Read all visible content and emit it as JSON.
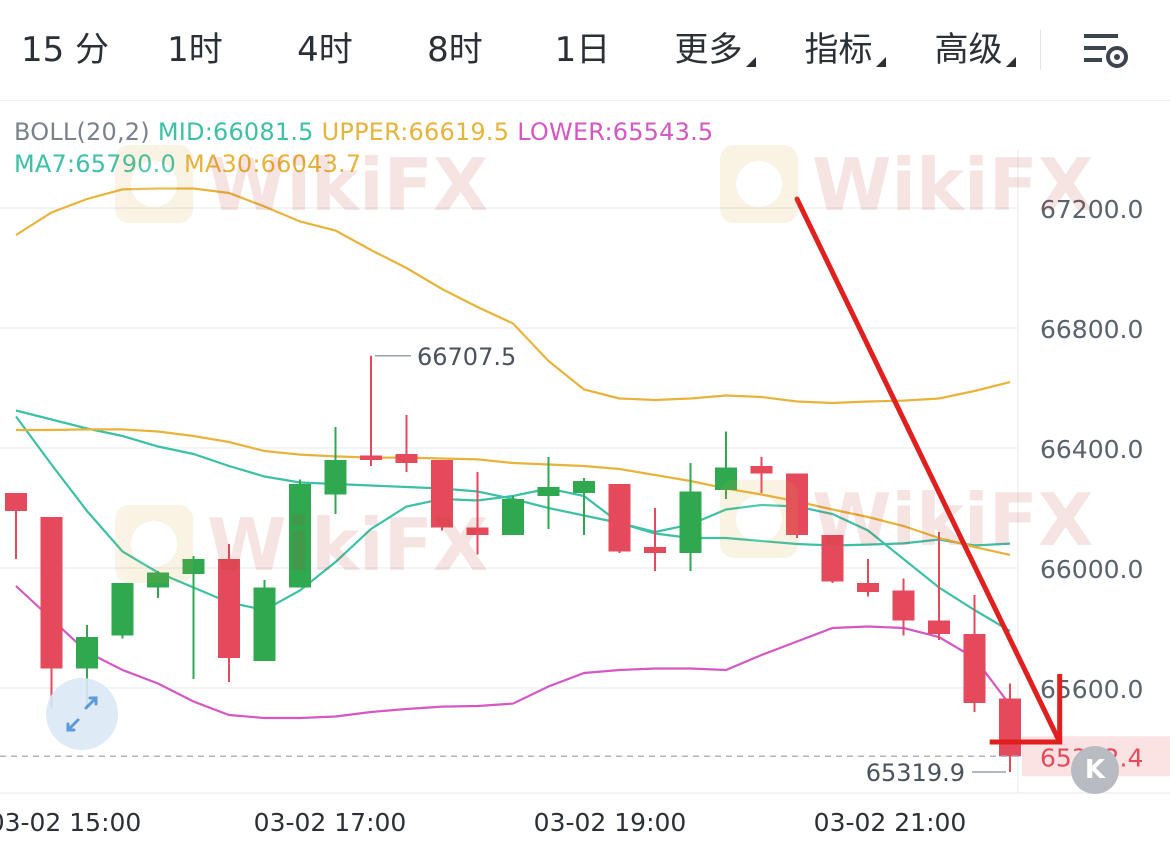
{
  "toolbar": {
    "tabs": [
      {
        "label": "15 分",
        "active": true
      },
      {
        "label": "1时",
        "active": false
      },
      {
        "label": "4时",
        "active": false
      },
      {
        "label": "8时",
        "active": false
      },
      {
        "label": "1日",
        "active": false
      },
      {
        "label": "更多",
        "active": false,
        "dropdown": true
      },
      {
        "label": "指标",
        "active": false,
        "dropdown": true
      },
      {
        "label": "高级",
        "active": false,
        "dropdown": true
      }
    ],
    "settings_icon": "chart-settings-icon"
  },
  "legend": {
    "boll_label": "BOLL(20,2)",
    "mid": "MID:66081.5",
    "upper": "UPPER:66619.5",
    "lower": "LOWER:65543.5",
    "ma7": "MA7:65790.0",
    "ma30": "MA30:66043.7"
  },
  "watermark_text": "WikiFX",
  "badge_label": "K",
  "colors": {
    "up": "#2fa84f",
    "down": "#e54a5c",
    "mid": "#3cc0a6",
    "upper": "#e9b33b",
    "lower": "#d457c3",
    "ma7": "#3cc0a6",
    "ma30": "#e9b33b",
    "arrow": "#e0201e",
    "accent": "#3a86d6"
  },
  "chart_data": {
    "type": "candlestick",
    "x_ticks": [
      "03-02 15:00",
      "03-02 17:00",
      "03-02 19:00",
      "03-02 21:00"
    ],
    "y_ticks": [
      67200.0,
      66800.0,
      66400.0,
      66000.0,
      65600.0
    ],
    "ylim": [
      65250,
      67350
    ],
    "current_price": "65372.4",
    "high_annotation": "66707.5",
    "low_annotation": "65319.9",
    "candles": [
      {
        "o": 66250,
        "h": 66250,
        "l": 66030,
        "c": 66190
      },
      {
        "o": 66170,
        "h": 66170,
        "l": 65535,
        "c": 65665
      },
      {
        "o": 65665,
        "h": 65810,
        "l": 65540,
        "c": 65770
      },
      {
        "o": 65775,
        "h": 65950,
        "l": 65765,
        "c": 65950
      },
      {
        "o": 65935,
        "h": 65990,
        "l": 65900,
        "c": 65985
      },
      {
        "o": 65980,
        "h": 66040,
        "l": 65630,
        "c": 66030
      },
      {
        "o": 66030,
        "h": 66080,
        "l": 65620,
        "c": 65700
      },
      {
        "o": 65690,
        "h": 65960,
        "l": 65690,
        "c": 65935
      },
      {
        "o": 65935,
        "h": 66295,
        "l": 65935,
        "c": 66280
      },
      {
        "o": 66245,
        "h": 66470,
        "l": 66180,
        "c": 66360
      },
      {
        "o": 66375,
        "h": 66707.5,
        "l": 66340,
        "c": 66360
      },
      {
        "o": 66380,
        "h": 66510,
        "l": 66320,
        "c": 66350
      },
      {
        "o": 66360,
        "h": 66360,
        "l": 66125,
        "c": 66135
      },
      {
        "o": 66135,
        "h": 66320,
        "l": 66045,
        "c": 66110
      },
      {
        "o": 66110,
        "h": 66240,
        "l": 66110,
        "c": 66230
      },
      {
        "o": 66240,
        "h": 66370,
        "l": 66130,
        "c": 66270
      },
      {
        "o": 66250,
        "h": 66300,
        "l": 66110,
        "c": 66290
      },
      {
        "o": 66280,
        "h": 66280,
        "l": 66050,
        "c": 66055
      },
      {
        "o": 66070,
        "h": 66200,
        "l": 65990,
        "c": 66050
      },
      {
        "o": 66050,
        "h": 66350,
        "l": 65990,
        "c": 66255
      },
      {
        "o": 66260,
        "h": 66455,
        "l": 66230,
        "c": 66335
      },
      {
        "o": 66340,
        "h": 66370,
        "l": 66250,
        "c": 66315
      },
      {
        "o": 66315,
        "h": 66315,
        "l": 66100,
        "c": 66110
      },
      {
        "o": 66110,
        "h": 66110,
        "l": 65950,
        "c": 65955
      },
      {
        "o": 65950,
        "h": 66030,
        "l": 65905,
        "c": 65920
      },
      {
        "o": 65925,
        "h": 65965,
        "l": 65775,
        "c": 65825
      },
      {
        "o": 65825,
        "h": 66120,
        "l": 65760,
        "c": 65780
      },
      {
        "o": 65780,
        "h": 65910,
        "l": 65520,
        "c": 65550
      },
      {
        "o": 65565,
        "h": 65615,
        "l": 65319.9,
        "c": 65372.4
      }
    ],
    "series": [
      {
        "name": "MID",
        "values": [
          66525,
          66495,
          66465,
          66440,
          66405,
          66380,
          66340,
          66305,
          66285,
          66280,
          66275,
          66270,
          66265,
          66255,
          66230,
          66200,
          66175,
          66150,
          66115,
          66100,
          66100,
          66090,
          66080,
          66075,
          66078,
          66082,
          66095,
          66075,
          66081.5
        ]
      },
      {
        "name": "UPPER",
        "values": [
          67110,
          67185,
          67230,
          67262,
          67265,
          67265,
          67250,
          67205,
          67155,
          67125,
          67060,
          67000,
          66930,
          66870,
          66815,
          66690,
          66595,
          66565,
          66560,
          66565,
          66575,
          66570,
          66555,
          66550,
          66555,
          66558,
          66565,
          66590,
          66619.5
        ]
      },
      {
        "name": "LOWER",
        "values": [
          65940,
          65830,
          65720,
          65660,
          65615,
          65555,
          65510,
          65500,
          65500,
          65505,
          65520,
          65530,
          65538,
          65540,
          65548,
          65605,
          65650,
          65660,
          65665,
          65665,
          65660,
          65710,
          65755,
          65800,
          65805,
          65800,
          65770,
          65700,
          65543.5
        ]
      },
      {
        "name": "MA7",
        "values": [
          66505,
          66345,
          66190,
          66055,
          65985,
          65935,
          65885,
          65860,
          65925,
          66020,
          66130,
          66205,
          66230,
          66225,
          66240,
          66265,
          66240,
          66150,
          66120,
          66145,
          66195,
          66210,
          66205,
          66180,
          66125,
          66030,
          65935,
          65860,
          65790.0
        ]
      },
      {
        "name": "MA30",
        "values": [
          66460,
          66460,
          66462,
          66462,
          66455,
          66440,
          66420,
          66390,
          66378,
          66372,
          66368,
          66368,
          66365,
          66362,
          66350,
          66345,
          66340,
          66330,
          66310,
          66290,
          66265,
          66245,
          66222,
          66195,
          66170,
          66140,
          66100,
          66070,
          66043.7
        ]
      }
    ],
    "trend_arrow": {
      "from": {
        "index": 22,
        "value": 67230
      },
      "to": {
        "index": 29.4,
        "value": 65420
      }
    }
  }
}
